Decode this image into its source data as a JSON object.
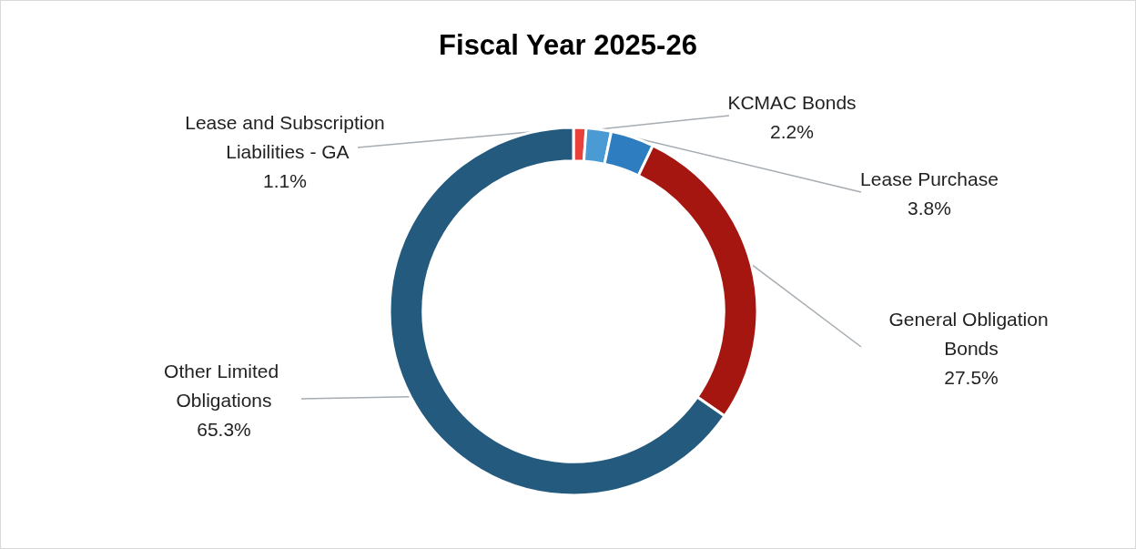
{
  "chart_data": {
    "type": "donut",
    "title": "Fiscal Year 2025-26",
    "categories": [
      "Lease and Subscription Liabilities - GA",
      "KCMAC Bonds",
      "Lease Purchase",
      "General Obligation Bonds",
      "Other Limited Obligations"
    ],
    "values": [
      1.1,
      2.2,
      3.8,
      27.5,
      65.3
    ],
    "value_labels": [
      "1.1%",
      "2.2%",
      "3.8%",
      "27.5%",
      "65.3%"
    ],
    "colors": [
      "#e8413c",
      "#4a9ad4",
      "#2e7dc0",
      "#a51611",
      "#235a7e"
    ],
    "legend": false
  }
}
